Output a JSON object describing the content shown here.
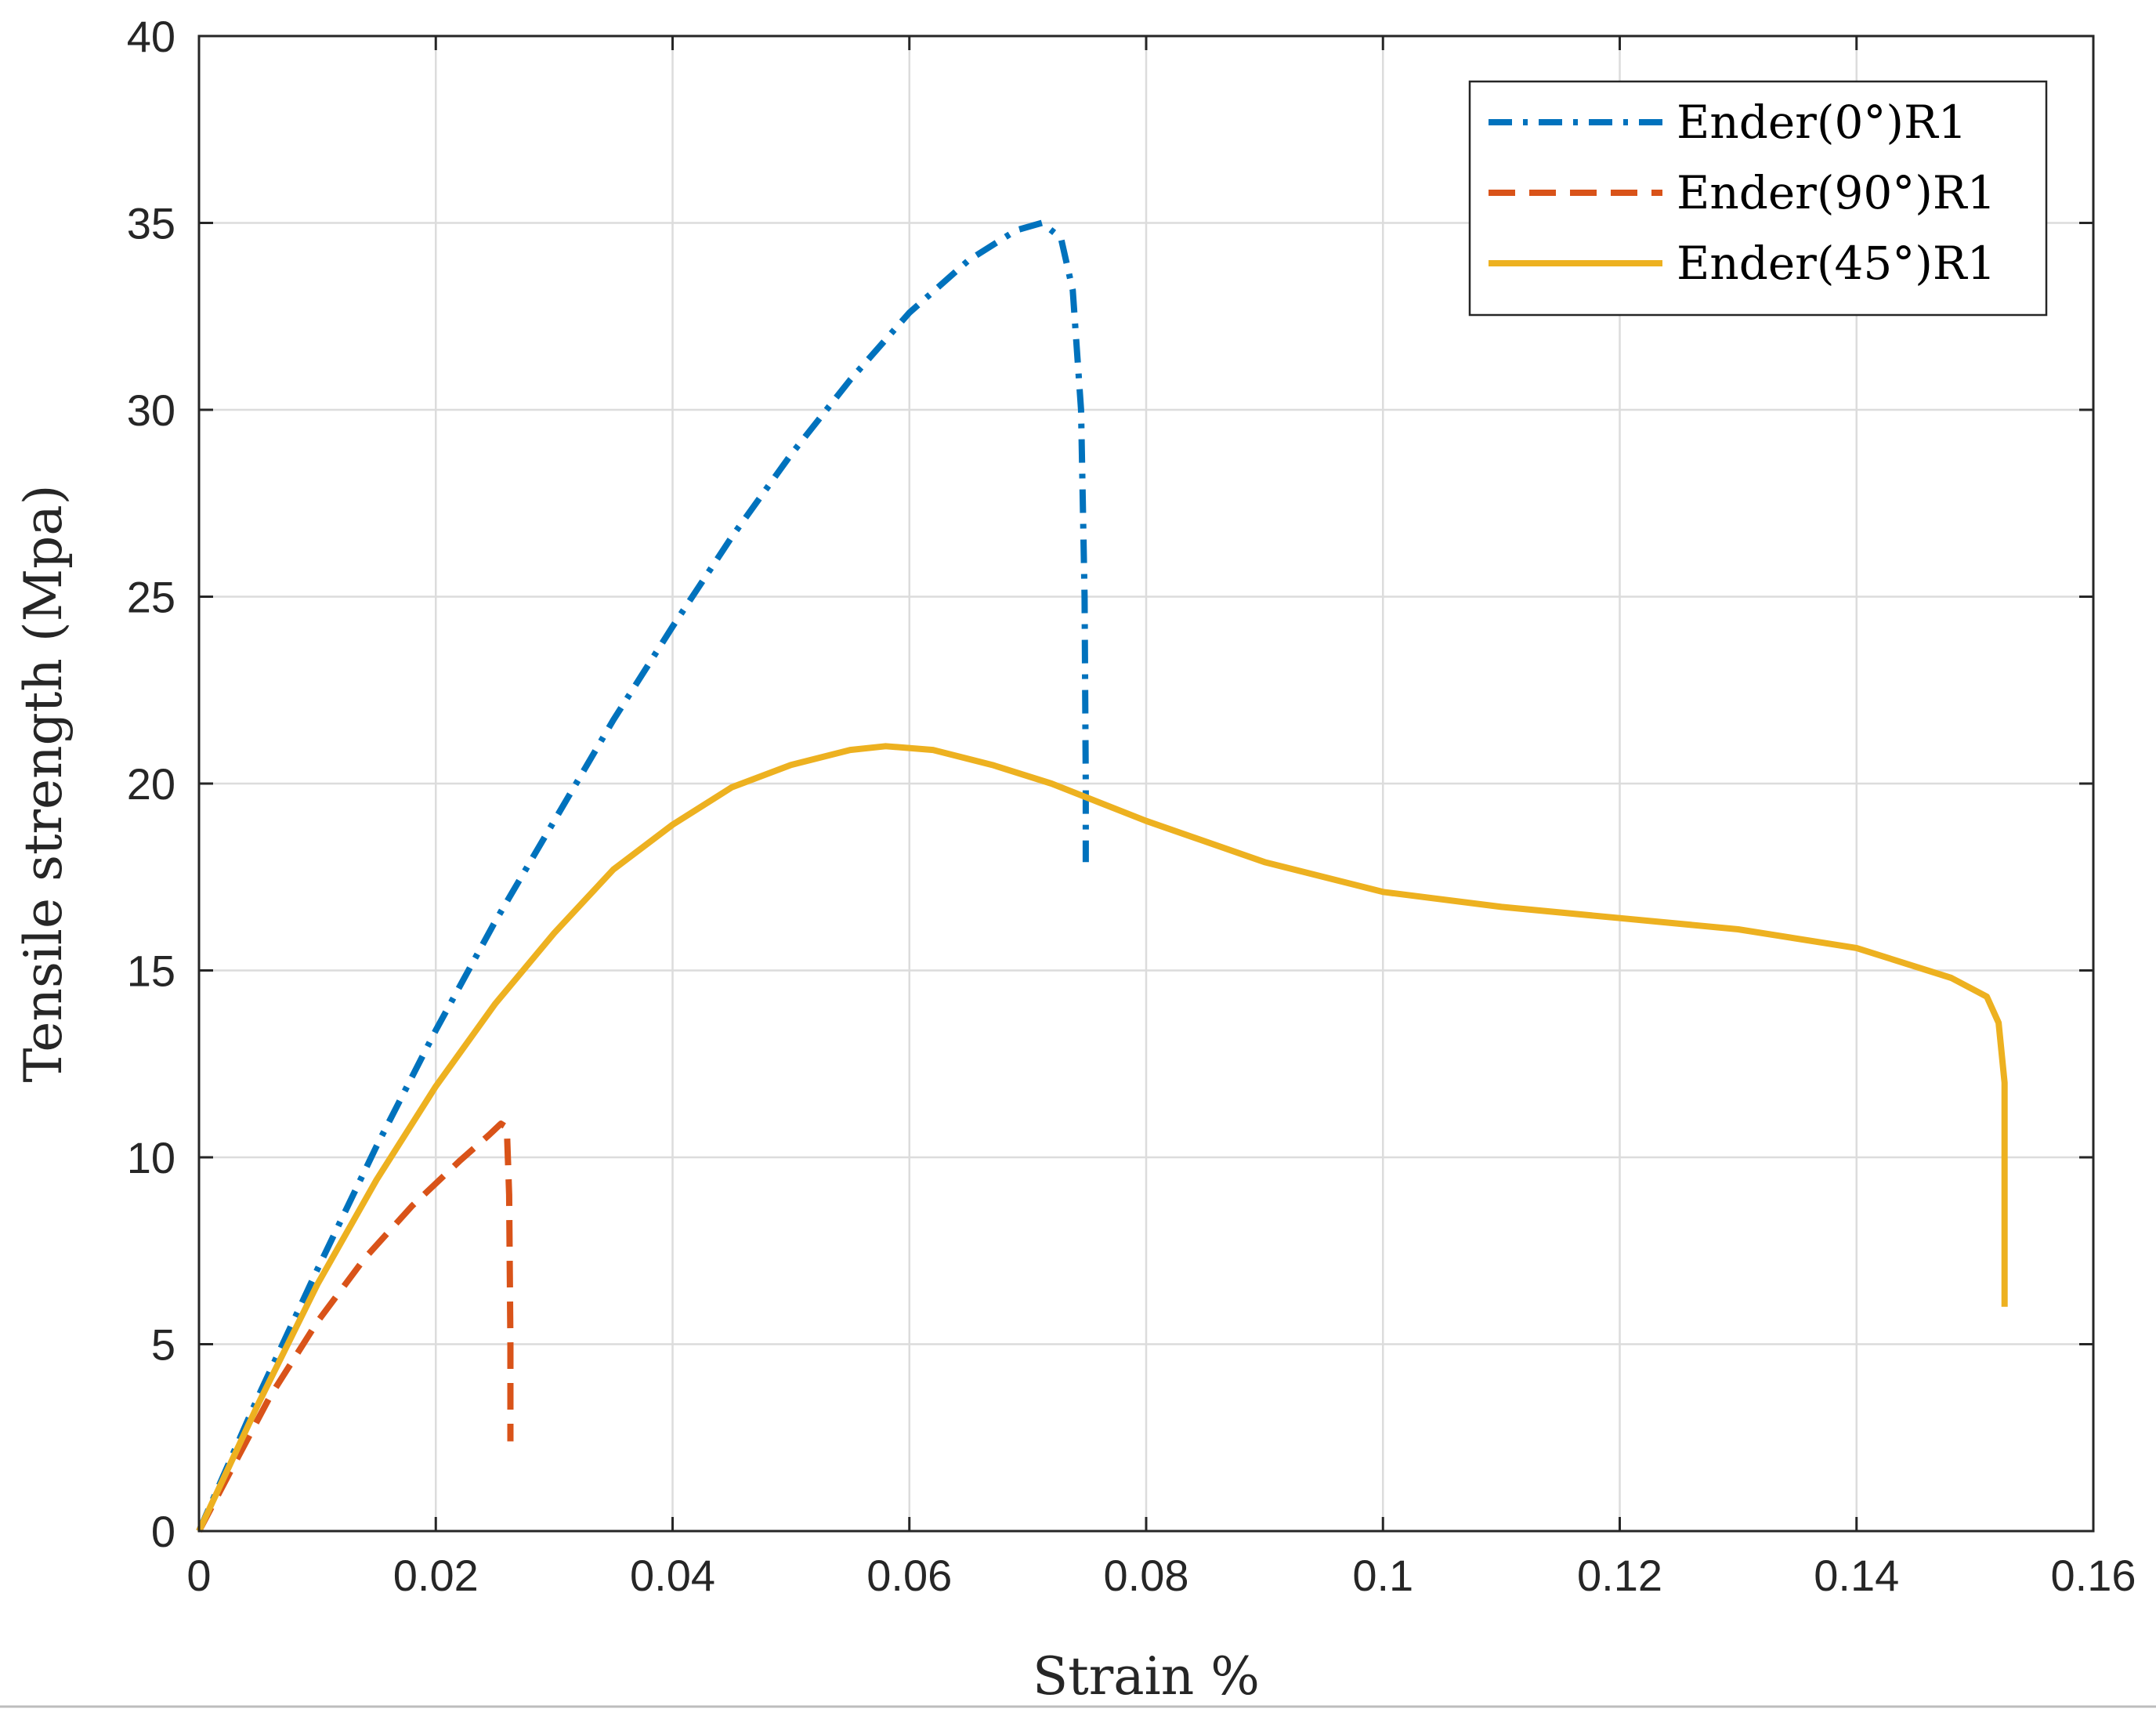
{
  "chart_data": {
    "type": "line",
    "title": "",
    "xlabel": "Strain %",
    "ylabel": "Tensile strength (Mpa)",
    "xlim": [
      0,
      0.16
    ],
    "ylim": [
      0,
      40
    ],
    "xticks": [
      0,
      0.02,
      0.04,
      0.06,
      0.08,
      0.1,
      0.12,
      0.14,
      0.16
    ],
    "xtick_labels": [
      "0",
      "0.02",
      "0.04",
      "0.06",
      "0.08",
      "0.1",
      "0.12",
      "0.14",
      "0.16"
    ],
    "yticks": [
      0,
      5,
      10,
      15,
      20,
      25,
      30,
      35,
      40
    ],
    "ytick_labels": [
      "0",
      "5",
      "10",
      "15",
      "20",
      "25",
      "30",
      "35",
      "40"
    ],
    "grid": true,
    "legend_position": "top-right",
    "series": [
      {
        "name": "Ender(0°)R1",
        "color": "#0072BD",
        "style": "dash-dot",
        "points": [
          [
            0,
            0
          ],
          [
            0.005,
            3.6
          ],
          [
            0.01,
            7.0
          ],
          [
            0.015,
            10.3
          ],
          [
            0.02,
            13.4
          ],
          [
            0.025,
            16.3
          ],
          [
            0.03,
            19.0
          ],
          [
            0.035,
            21.7
          ],
          [
            0.04,
            24.2
          ],
          [
            0.045,
            26.6
          ],
          [
            0.05,
            28.8
          ],
          [
            0.055,
            30.8
          ],
          [
            0.06,
            32.6
          ],
          [
            0.065,
            34.0
          ],
          [
            0.069,
            34.8
          ],
          [
            0.0712,
            35.0
          ],
          [
            0.0728,
            34.6
          ],
          [
            0.0738,
            33.2
          ],
          [
            0.0745,
            30.0
          ],
          [
            0.0748,
            25.0
          ],
          [
            0.0749,
            20.0
          ],
          [
            0.0749,
            17.9
          ]
        ]
      },
      {
        "name": "Ender(90°)R1",
        "color": "#D95319",
        "style": "dashed",
        "points": [
          [
            0,
            0
          ],
          [
            0.003,
            1.8
          ],
          [
            0.006,
            3.6
          ],
          [
            0.01,
            5.6
          ],
          [
            0.014,
            7.3
          ],
          [
            0.018,
            8.7
          ],
          [
            0.022,
            9.9
          ],
          [
            0.0245,
            10.6
          ],
          [
            0.0255,
            10.9
          ],
          [
            0.026,
            10.8
          ],
          [
            0.0262,
            9.0
          ],
          [
            0.0263,
            5.0
          ],
          [
            0.0263,
            2.4
          ]
        ]
      },
      {
        "name": "Ender(45°)R1",
        "color": "#EDB120",
        "style": "solid",
        "points": [
          [
            0,
            0
          ],
          [
            0.005,
            3.4
          ],
          [
            0.01,
            6.6
          ],
          [
            0.015,
            9.4
          ],
          [
            0.02,
            11.9
          ],
          [
            0.025,
            14.1
          ],
          [
            0.03,
            16.0
          ],
          [
            0.035,
            17.7
          ],
          [
            0.04,
            18.9
          ],
          [
            0.045,
            19.9
          ],
          [
            0.05,
            20.5
          ],
          [
            0.055,
            20.9
          ],
          [
            0.058,
            21.0
          ],
          [
            0.062,
            20.9
          ],
          [
            0.067,
            20.5
          ],
          [
            0.072,
            20.0
          ],
          [
            0.08,
            19.0
          ],
          [
            0.09,
            17.9
          ],
          [
            0.1,
            17.1
          ],
          [
            0.11,
            16.7
          ],
          [
            0.12,
            16.4
          ],
          [
            0.13,
            16.1
          ],
          [
            0.14,
            15.6
          ],
          [
            0.148,
            14.8
          ],
          [
            0.151,
            14.3
          ],
          [
            0.152,
            13.6
          ],
          [
            0.1525,
            12.0
          ],
          [
            0.1525,
            9.0
          ],
          [
            0.1525,
            6.0
          ]
        ]
      }
    ]
  }
}
